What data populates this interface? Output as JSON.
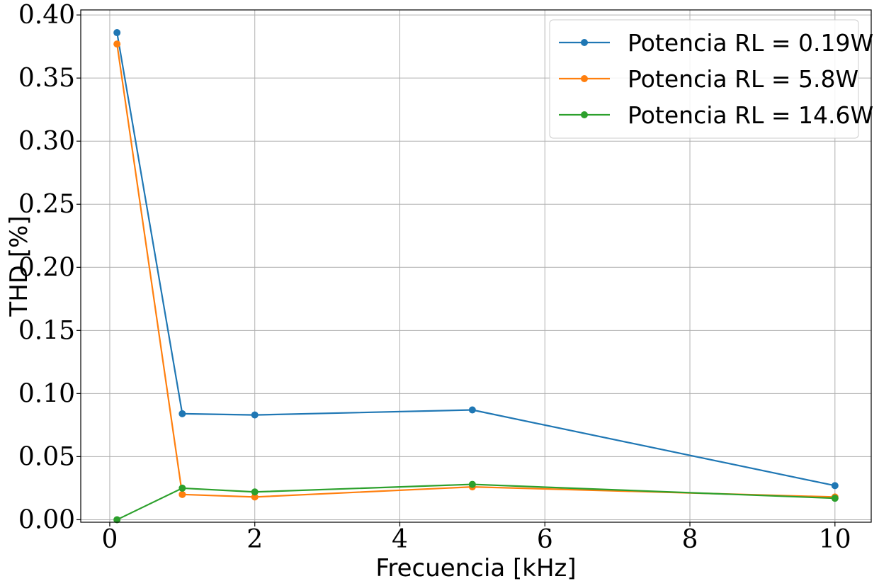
{
  "chart_data": {
    "type": "line",
    "title": "",
    "xlabel": "Frecuencia [kHz]",
    "ylabel": "THD [%]",
    "xlim": [
      -0.4,
      10.5
    ],
    "ylim": [
      -0.002,
      0.404
    ],
    "xticks": [
      0,
      2,
      4,
      6,
      8,
      10
    ],
    "xtick_labels": [
      "0",
      "2",
      "4",
      "6",
      "8",
      "10"
    ],
    "yticks": [
      0.0,
      0.05,
      0.1,
      0.15,
      0.2,
      0.25,
      0.3,
      0.35,
      0.4
    ],
    "ytick_labels": [
      "0.00",
      "0.05",
      "0.10",
      "0.15",
      "0.20",
      "0.25",
      "0.30",
      "0.35",
      "0.40"
    ],
    "grid": true,
    "legend_position": "top-right",
    "series": [
      {
        "name": "Potencia RL = 0.19W",
        "color": "#1f77b4",
        "x": [
          0.1,
          1,
          2,
          5,
          10
        ],
        "y": [
          0.386,
          0.084,
          0.083,
          0.087,
          0.027
        ]
      },
      {
        "name": "Potencia RL = 5.8W",
        "color": "#ff7f0e",
        "x": [
          0.1,
          1,
          2,
          5,
          10
        ],
        "y": [
          0.377,
          0.02,
          0.018,
          0.026,
          0.018
        ]
      },
      {
        "name": "Potencia RL = 14.6W",
        "color": "#2ca02c",
        "x": [
          0.1,
          1,
          2,
          5,
          10
        ],
        "y": [
          0.0,
          0.025,
          0.022,
          0.028,
          0.017
        ]
      }
    ]
  }
}
